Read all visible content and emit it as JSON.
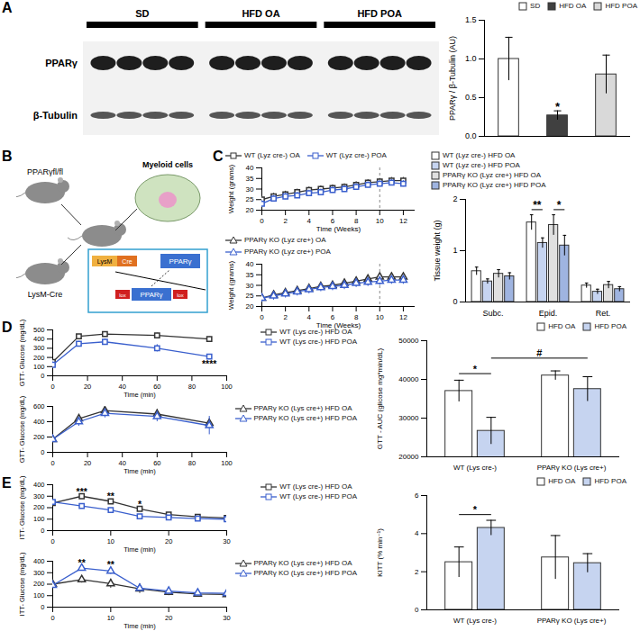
{
  "blot": {
    "panel": "A",
    "groups": [
      "SD",
      "HFD OA",
      "HFD POA"
    ],
    "rows": [
      "PPARγ",
      "β-Tubulin"
    ]
  },
  "diagram": {
    "panel": "B",
    "mouse_1": "PPARγfl/fl",
    "mouse_2": "LysM-Cre",
    "cell": "Myeloid cells",
    "construct": [
      "LysM",
      "Cre",
      "lox",
      "PPARγ",
      "lox"
    ],
    "product": "PPARγ"
  },
  "chart_data": [
    {
      "panel": "A",
      "type": "bar",
      "categories": [
        "SD",
        "HFD OA",
        "HFD POA"
      ],
      "series": [
        {
          "values": [
            1.0,
            0.27,
            0.8
          ],
          "errors": [
            0.28,
            0.06,
            0.25
          ],
          "colors": [
            "#ffffff",
            "#404040",
            "#d9d9d9"
          ]
        }
      ],
      "y_label": "PPARγ / β-Tubulin (AU)",
      "ylim": [
        0,
        1.5
      ],
      "yticks": [
        {
          "value": 0,
          "label": "0.0"
        },
        {
          "value": 0.5,
          "label": "0.5"
        },
        {
          "value": 1,
          "label": "1.0"
        },
        {
          "value": 1.5,
          "label": "1.5"
        }
      ],
      "legend": "top",
      "tick_labels": "y",
      "annotations": [
        {
          "text": "*",
          "at": [
            "HFD OA"
          ],
          "y": 0.38
        }
      ]
    },
    {
      "panel": "C",
      "type": "line",
      "x": [
        0,
        1,
        2,
        3,
        4,
        5,
        6,
        7,
        8,
        9,
        10,
        11,
        12
      ],
      "x_label": "Time (Weeks)",
      "y_label": "Weight (grams)",
      "xlim": [
        0,
        13
      ],
      "xticks": [
        0,
        2,
        4,
        6,
        8,
        10,
        12
      ],
      "ylim": [
        20,
        40
      ],
      "yticks": [
        20,
        25,
        30,
        35,
        40
      ],
      "vline": 10,
      "legend": "top",
      "series": [
        {
          "name": "WT (Lyz cre-) OA",
          "color": "#333333",
          "marker": "square",
          "values": [
            25,
            26.5,
            27.5,
            28.5,
            29.5,
            30,
            30.5,
            31,
            32,
            33,
            33.5,
            34,
            34
          ],
          "errors": [
            1.5,
            1.5,
            1.5,
            1.5,
            1.5,
            1.5,
            1.5,
            1.5,
            1.5,
            1.5,
            1.5,
            1.5,
            1.5
          ]
        },
        {
          "name": "WT (Lyz cre-) POA",
          "color": "#3a5fcd",
          "marker": "square",
          "values": [
            23,
            25.5,
            26.5,
            27,
            28,
            28.5,
            29.5,
            30,
            31,
            32,
            32.5,
            33,
            32.5
          ],
          "errors": [
            1.5,
            1.5,
            1.5,
            1.5,
            1.5,
            1.5,
            1.5,
            1.5,
            1.5,
            1.5,
            1.5,
            1.5,
            1.5
          ]
        }
      ]
    },
    {
      "panel": "C",
      "type": "line",
      "x": [
        0,
        1,
        2,
        3,
        4,
        5,
        6,
        7,
        8,
        9,
        10,
        11,
        12
      ],
      "x_label": "Time (Weeks)",
      "y_label": "Weight (grams)",
      "xlim": [
        0,
        13
      ],
      "xticks": [
        0,
        2,
        4,
        6,
        8,
        10,
        12
      ],
      "ylim": [
        20,
        40
      ],
      "yticks": [
        20,
        25,
        30,
        35,
        40
      ],
      "vline": 10,
      "legend": "top",
      "series": [
        {
          "name": "PPARγ KO (Lyz cre+) OA",
          "color": "#333333",
          "marker": "triangle",
          "values": [
            24,
            25.5,
            26.5,
            27.5,
            28.5,
            29.5,
            30,
            31,
            32,
            33,
            34,
            34,
            34
          ],
          "errors": [
            1.5,
            1.5,
            1.5,
            1.5,
            1.5,
            1.5,
            1.5,
            1.5,
            1.5,
            1.5,
            1.5,
            1.5,
            1.5
          ]
        },
        {
          "name": "PPARγ KO (Lyz cre+) POA",
          "color": "#3a5fcd",
          "marker": "triangle",
          "values": [
            24,
            25,
            26,
            27,
            28,
            29,
            29.5,
            30,
            31,
            31.5,
            32,
            32.5,
            32.5
          ],
          "errors": [
            2,
            2,
            2,
            2,
            2,
            2,
            2,
            2,
            2,
            2,
            2,
            2,
            2
          ]
        }
      ]
    },
    {
      "panel": "C",
      "type": "bar",
      "categories": [
        "Subc.",
        "Epid.",
        "Ret."
      ],
      "y_label": "Tissue weight (g)",
      "ylim": [
        0,
        2
      ],
      "yticks": [
        0,
        1,
        2
      ],
      "legend": "top",
      "series": [
        {
          "name": "WT (Lyz cre-) HFD OA",
          "color": "#ffffff",
          "values": [
            0.6,
            1.55,
            0.32
          ],
          "errors": [
            0.08,
            0.15,
            0.05
          ]
        },
        {
          "name": "WT (Lyz cre-) HFD POA",
          "color": "#c6d4f0",
          "values": [
            0.4,
            1.15,
            0.2
          ],
          "errors": [
            0.05,
            0.1,
            0.05
          ]
        },
        {
          "name": "PPARγ KO (Lyz cre+) HFD OA",
          "color": "#e0e0e0",
          "values": [
            0.55,
            1.5,
            0.33
          ],
          "errors": [
            0.08,
            0.2,
            0.07
          ]
        },
        {
          "name": "PPARγ KO (Lyz cre+) HFD POA",
          "color": "#9fb4e0",
          "values": [
            0.5,
            1.1,
            0.25
          ],
          "errors": [
            0.07,
            0.2,
            0.05
          ]
        }
      ],
      "annotations": [
        {
          "text": "**",
          "from": [
            "Epid.",
            "WT (Lyz cre-) HFD OA"
          ],
          "to": [
            "Epid.",
            "WT (Lyz cre-) HFD POA"
          ],
          "y": 1.8
        },
        {
          "text": "*",
          "from": [
            "Epid.",
            "PPARγ KO (Lyz cre+) HFD OA"
          ],
          "to": [
            "Epid.",
            "PPARγ KO (Lyz cre+) HFD POA"
          ],
          "y": 1.8
        }
      ]
    },
    {
      "panel": "D",
      "type": "line",
      "x": [
        0,
        15,
        30,
        60,
        90
      ],
      "x_label": "Time (min)",
      "y_label": "GTT- Glucose (mg/dL)",
      "xlim": [
        0,
        100
      ],
      "xticks": [
        0,
        20,
        40,
        60,
        80,
        100
      ],
      "ylim": [
        0,
        500
      ],
      "yticks": [
        0,
        100,
        200,
        300,
        400,
        500
      ],
      "legend": "right",
      "series": [
        {
          "name": "WT (Lys cre-) HFD OA",
          "color": "#333333",
          "marker": "square",
          "values": [
            150,
            430,
            455,
            440,
            400
          ],
          "errors": [
            15,
            20,
            15,
            25,
            25
          ]
        },
        {
          "name": "WT (Lys cre-) HFD POA",
          "color": "#3a5fcd",
          "marker": "square",
          "values": [
            120,
            350,
            370,
            300,
            210
          ],
          "errors": [
            30,
            25,
            30,
            40,
            20
          ]
        }
      ],
      "annotations": [
        {
          "text": "****",
          "x": 90,
          "y": 130
        }
      ]
    },
    {
      "panel": "D",
      "type": "line",
      "x": [
        0,
        15,
        30,
        60,
        90
      ],
      "x_label": "Time (min)",
      "y_label": "GTT- Glucose (mg/dL)",
      "xlim": [
        0,
        100
      ],
      "xticks": [
        0,
        20,
        40,
        60,
        80,
        100
      ],
      "ylim": [
        0,
        600
      ],
      "yticks": [
        0,
        200,
        400,
        600
      ],
      "legend": "right",
      "series": [
        {
          "name": "PPARγ KO (Lys cre+) HFD OA",
          "color": "#333333",
          "marker": "triangle",
          "values": [
            170,
            440,
            545,
            500,
            380
          ],
          "errors": [
            20,
            25,
            20,
            60,
            50
          ]
        },
        {
          "name": "PPARγ KO (Lys cre+) HFD POA",
          "color": "#3a5fcd",
          "marker": "triangle",
          "values": [
            170,
            400,
            510,
            470,
            350
          ],
          "errors": [
            20,
            60,
            60,
            70,
            120
          ]
        }
      ]
    },
    {
      "panel": "D",
      "type": "bar",
      "categories": [
        "WT (Lys cre-)",
        "PPARγ KO (Lys cre+)"
      ],
      "y_label": "GTT - AUC (glicose mg*min/dL)",
      "ylim": [
        20000,
        50000
      ],
      "yticks": [
        20000,
        30000,
        40000,
        50000
      ],
      "legend": "top",
      "series": [
        {
          "name": "HFD OA",
          "color": "#ffffff",
          "values": [
            37000,
            41000
          ],
          "errors": [
            2800,
            1200
          ]
        },
        {
          "name": "HFD POA",
          "color": "#c6d4f0",
          "values": [
            26700,
            37500
          ],
          "errors": [
            3500,
            3200
          ]
        }
      ],
      "annotations": [
        {
          "text": "*",
          "from": [
            "WT (Lys cre-)",
            "HFD OA"
          ],
          "to": [
            "WT (Lys cre-)",
            "HFD POA"
          ],
          "y": 41500
        },
        {
          "text": "#",
          "from": [
            "WT (Lys cre-)",
            "HFD POA"
          ],
          "to": [
            "PPARγ KO (Lys cre+)",
            "HFD POA"
          ],
          "y": 45500
        }
      ]
    },
    {
      "panel": "E",
      "type": "line",
      "x": [
        0,
        5,
        10,
        15,
        20,
        25,
        30
      ],
      "x_label": "Time (min)",
      "y_label": "ITT- Glucose (mg/dL)",
      "xlim": [
        0,
        30
      ],
      "xticks": [
        0,
        10,
        20,
        30
      ],
      "ylim": [
        0,
        400
      ],
      "yticks": [
        0,
        100,
        200,
        300,
        400
      ],
      "legend": "right",
      "series": [
        {
          "name": "WT (Lys cre-) HFD OA",
          "color": "#333333",
          "marker": "square",
          "values": [
            240,
            300,
            255,
            190,
            140,
            120,
            110
          ],
          "errors": [
            20,
            15,
            15,
            15,
            10,
            10,
            10
          ]
        },
        {
          "name": "WT (Lys cre-) HFD POA",
          "color": "#3a5fcd",
          "marker": "square",
          "values": [
            250,
            215,
            180,
            125,
            115,
            105,
            100
          ],
          "errors": [
            15,
            10,
            10,
            10,
            10,
            10,
            10
          ]
        }
      ],
      "annotations": [
        {
          "text": "***",
          "x": 5,
          "y": 340
        },
        {
          "text": "**",
          "x": 10,
          "y": 295
        },
        {
          "text": "*",
          "x": 15,
          "y": 230
        }
      ]
    },
    {
      "panel": "E",
      "type": "line",
      "x": [
        0,
        5,
        10,
        15,
        20,
        25,
        30
      ],
      "x_label": "Time (min)",
      "y_label": "ITT- Glucose (mg/dL)",
      "xlim": [
        0,
        30
      ],
      "xticks": [
        0,
        10,
        20,
        30
      ],
      "ylim": [
        0,
        400
      ],
      "yticks": [
        0,
        100,
        200,
        300,
        400
      ],
      "legend": "right",
      "series": [
        {
          "name": "PPARγ KO (Lys cre+) HFD OA",
          "color": "#333333",
          "marker": "triangle",
          "values": [
            200,
            240,
            205,
            160,
            130,
            115,
            110
          ],
          "errors": [
            30,
            30,
            40,
            40,
            30,
            20,
            20
          ]
        },
        {
          "name": "PPARγ KO (Lys cre+) HFD POA",
          "color": "#3a5fcd",
          "marker": "triangle",
          "values": [
            190,
            340,
            315,
            165,
            140,
            125,
            120
          ],
          "errors": [
            20,
            25,
            30,
            20,
            20,
            15,
            15
          ]
        }
      ],
      "annotations": [
        {
          "text": "**",
          "x": 5,
          "y": 385
        },
        {
          "text": "**",
          "x": 10,
          "y": 365
        }
      ]
    },
    {
      "panel": "E",
      "type": "bar",
      "categories": [
        "WT (Lys cre-)",
        "PPARγ KO (Lys cre+)"
      ],
      "y_label": "KITT (% min⁻¹)",
      "ylim": [
        0,
        6
      ],
      "yticks": [
        0,
        2,
        4,
        6
      ],
      "legend": "top",
      "series": [
        {
          "name": "HFD OA",
          "color": "#ffffff",
          "values": [
            2.5,
            2.75
          ],
          "errors": [
            0.8,
            1.15
          ]
        },
        {
          "name": "HFD POA",
          "color": "#c6d4f0",
          "values": [
            4.3,
            2.45
          ],
          "errors": [
            0.4,
            0.5
          ]
        }
      ],
      "annotations": [
        {
          "text": "*",
          "from": [
            "WT (Lys cre-)",
            "HFD OA"
          ],
          "to": [
            "WT (Lys cre-)",
            "HFD POA"
          ],
          "y": 5.0
        }
      ]
    }
  ]
}
